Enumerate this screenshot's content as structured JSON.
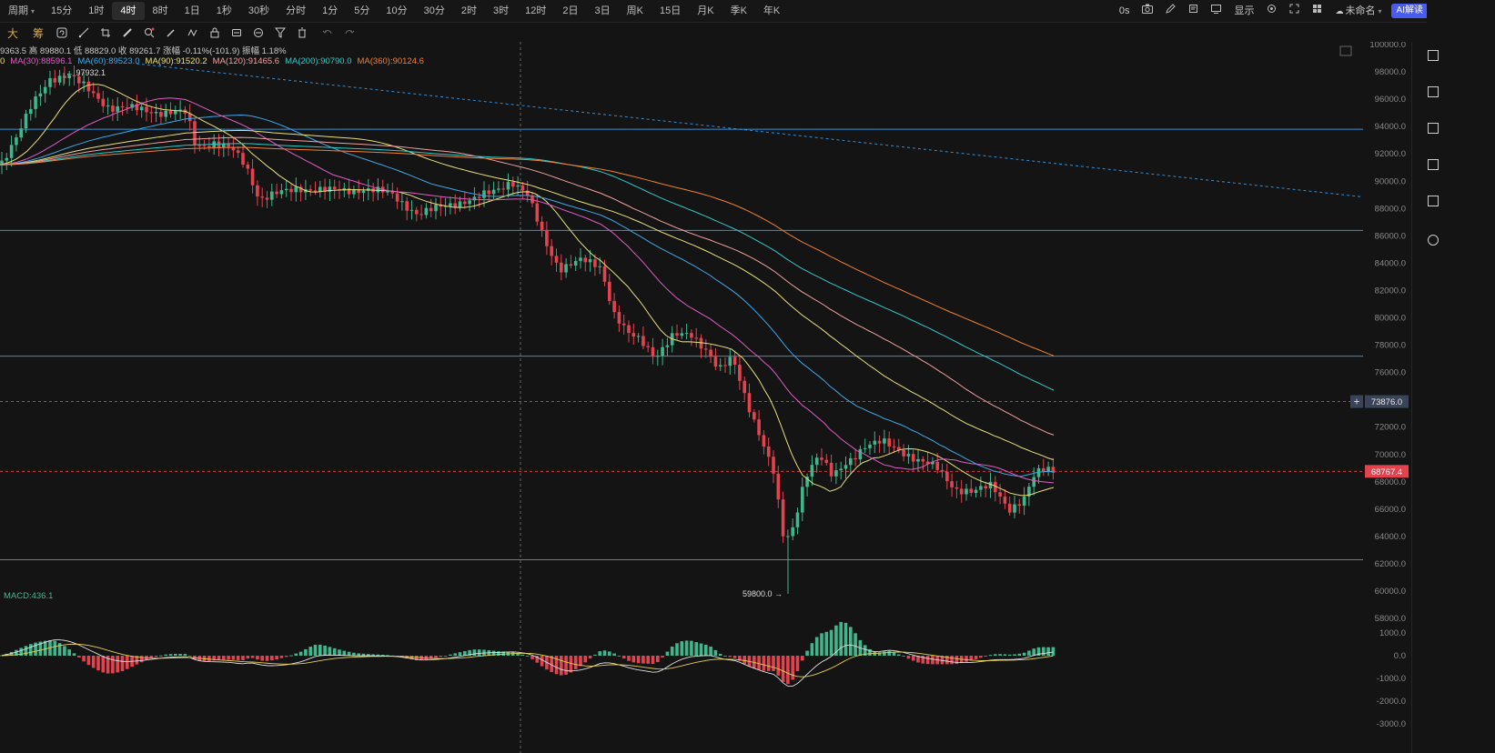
{
  "topbar": {
    "periods": [
      {
        "label": "周期"
      },
      {
        "label": "15分"
      },
      {
        "label": "1时"
      },
      {
        "label": "4时",
        "active": true
      },
      {
        "label": "8时"
      },
      {
        "label": "1日"
      },
      {
        "label": "1秒"
      },
      {
        "label": "30秒"
      },
      {
        "label": "分时"
      },
      {
        "label": "1分"
      },
      {
        "label": "5分"
      },
      {
        "label": "10分"
      },
      {
        "label": "30分"
      },
      {
        "label": "2时"
      },
      {
        "label": "3时"
      },
      {
        "label": "12时"
      },
      {
        "label": "2日"
      },
      {
        "label": "3日"
      },
      {
        "label": "周K"
      },
      {
        "label": "15日"
      },
      {
        "label": "月K"
      },
      {
        "label": "季K"
      },
      {
        "label": "年K"
      }
    ],
    "timer": "0s",
    "display_label": "显示",
    "layout_name": "未命名",
    "ai_label": "AI解读"
  },
  "toolbar2": {
    "tab_big": "大",
    "tab_chips": "筹"
  },
  "legend": {
    "ohlc": "9363.5 高 89880.1 低 88829.0 收 89261.7 涨幅 -0.11%(-101.9) 振幅 1.18%",
    "ma_lead": "0",
    "ma": [
      {
        "text": "MA(30):88596.1",
        "color": "#e05cc4"
      },
      {
        "text": "MA(60):89523.0",
        "color": "#3fa7e8"
      },
      {
        "text": "MA(90):91520.2",
        "color": "#e8e07a"
      },
      {
        "text": "MA(120):91465.6",
        "color": "#f0a0a0"
      },
      {
        "text": "MA(200):90790.0",
        "color": "#2ec9c9"
      },
      {
        "text": "MA(360):90124.6",
        "color": "#f08030"
      }
    ]
  },
  "price_axis": {
    "ticks": [
      "100000.0",
      "98000.0",
      "96000.0",
      "94000.0",
      "92000.0",
      "90000.0",
      "88000.0",
      "86000.0",
      "84000.0",
      "82000.0",
      "80000.0",
      "78000.0",
      "76000.0",
      "74000.0",
      "72000.0",
      "70000.0",
      "68000.0",
      "66000.0",
      "64000.0",
      "62000.0",
      "60000.0",
      "58000.0"
    ],
    "crosshair_price": "73876.0",
    "last_price": "68767.4",
    "high_label": "97932.1",
    "low_label": "59800.0"
  },
  "macd": {
    "label": "MACD:436.1",
    "ticks": [
      "1000.0",
      "0.0",
      "-1000.0",
      "-2000.0",
      "-3000.0"
    ]
  },
  "chart_data": {
    "type": "candlestick",
    "price_range": [
      57000,
      100500
    ],
    "horizontal_levels": [
      93800,
      86400,
      77200,
      62300
    ],
    "crosshair_price": 73876.0,
    "last_price": 68767.4,
    "period_high": 97932.1,
    "period_low": 59800.0,
    "macd_value": 436.1,
    "macd_range": [
      -3600,
      1400
    ],
    "colors": {
      "up": "#3fb68b",
      "down": "#e2434f",
      "level": "#2f8fd6"
    }
  }
}
